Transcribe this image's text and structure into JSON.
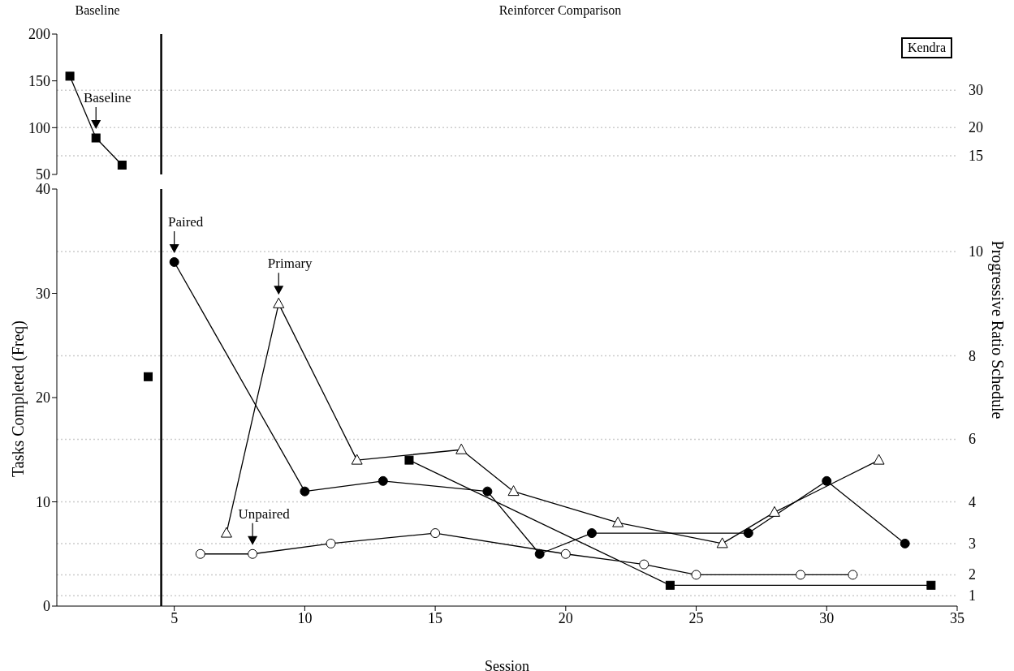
{
  "chart_data": [
    {
      "type": "line",
      "annotations": [
        "Baseline",
        "Reinforcer Comparison",
        "Kendra",
        {
          "text": "Baseline",
          "x": 2,
          "y": 89
        },
        {
          "text": "15",
          "x": 35,
          "y": 70
        },
        {
          "text": "20",
          "x": 35,
          "y": 100
        },
        {
          "text": "30",
          "x": 35,
          "y": 140
        }
      ],
      "xlim": [
        0.5,
        35
      ],
      "xticks": [
        5,
        10,
        15,
        20,
        25,
        30,
        35
      ],
      "ylim": [
        50,
        200
      ],
      "yticks": [
        50,
        100,
        150,
        200
      ],
      "tick_labels": "y",
      "line_style": "solid",
      "series": [
        {
          "color": "#000000",
          "marker": "square",
          "x": [
            1,
            2,
            3
          ],
          "values": [
            155,
            89,
            60
          ]
        }
      ],
      "ref_lines": [
        {
          "axis": "x",
          "value": 4.5,
          "color": "#000000",
          "line_style": "solid"
        },
        {
          "axis": "y",
          "value": 70,
          "color": "#cccccc",
          "line_style": "dotted"
        },
        {
          "axis": "y",
          "value": 100,
          "color": "#cccccc",
          "line_style": "dotted"
        },
        {
          "axis": "y",
          "value": 140,
          "color": "#cccccc",
          "line_style": "dotted"
        }
      ]
    },
    {
      "type": "line",
      "xlabel": "Session",
      "ylabel": "Tasks Completed (Freq)",
      "y2label": "Progressive Ratio Schedule",
      "annotations": [
        {
          "text": "Paired",
          "x": 5,
          "y": 33
        },
        {
          "text": "Primary",
          "x": 9,
          "y": 29
        },
        {
          "text": "Unpaired",
          "x": 8,
          "y": 5
        },
        {
          "text": "1",
          "x": 35,
          "y": 1
        },
        {
          "text": "2",
          "x": 35,
          "y": 3
        },
        {
          "text": "3",
          "x": 35,
          "y": 6
        },
        {
          "text": "4",
          "x": 35,
          "y": 10
        },
        {
          "text": "6",
          "x": 35,
          "y": 16
        },
        {
          "text": "8",
          "x": 35,
          "y": 24
        },
        {
          "text": "10",
          "x": 35,
          "y": 34
        }
      ],
      "xlim": [
        0.5,
        35
      ],
      "xticks": [
        5,
        10,
        15,
        20,
        25,
        30,
        35
      ],
      "ylim": [
        0,
        40
      ],
      "yticks": [
        0,
        10,
        20,
        30,
        40
      ],
      "line_style": "solid",
      "series": [
        {
          "color": "#000000",
          "marker": "square",
          "x": [
            4,
            4.5,
            14,
            24,
            34
          ],
          "values": [
            22,
            null,
            14,
            2,
            2
          ]
        },
        {
          "color": "#000000",
          "marker": "circle",
          "x": [
            5,
            10,
            13,
            17,
            19,
            21,
            27,
            30,
            33
          ],
          "values": [
            33,
            11,
            12,
            11,
            5,
            7,
            7,
            12,
            6
          ]
        },
        {
          "color": "#ffffff",
          "marker": "triangle",
          "x": [
            7,
            9,
            12,
            16,
            18,
            22,
            26,
            28,
            32
          ],
          "values": [
            7,
            29,
            14,
            15,
            11,
            8,
            6,
            9,
            14
          ]
        },
        {
          "color": "#ffffff",
          "marker": "circle",
          "x": [
            6,
            8,
            11,
            15,
            20,
            23,
            25,
            29,
            31
          ],
          "values": [
            5,
            5,
            6,
            7,
            5,
            4,
            3,
            3,
            3
          ]
        }
      ],
      "ref_lines": [
        {
          "axis": "x",
          "value": 4.5,
          "color": "#000000",
          "line_style": "solid"
        },
        {
          "axis": "y",
          "value": 1,
          "color": "#cccccc",
          "line_style": "dotted"
        },
        {
          "axis": "y",
          "value": 3,
          "color": "#cccccc",
          "line_style": "dotted"
        },
        {
          "axis": "y",
          "value": 6,
          "color": "#cccccc",
          "line_style": "dotted"
        },
        {
          "axis": "y",
          "value": 10,
          "color": "#cccccc",
          "line_style": "dotted"
        },
        {
          "axis": "y",
          "value": 16,
          "color": "#cccccc",
          "line_style": "dotted"
        },
        {
          "axis": "y",
          "value": 24,
          "color": "#cccccc",
          "line_style": "dotted"
        },
        {
          "axis": "y",
          "value": 34,
          "color": "#cccccc",
          "line_style": "dotted"
        }
      ]
    }
  ]
}
